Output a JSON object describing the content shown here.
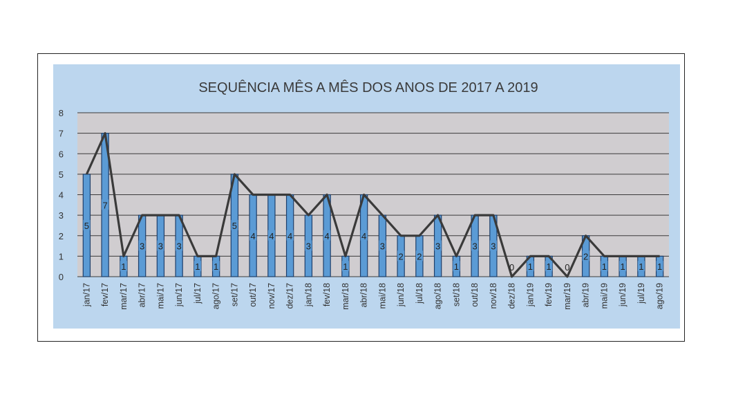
{
  "chart_data": {
    "type": "bar",
    "title": "SEQUÊNCIA MÊS A MÊS DOS ANOS DE 2017 A 2019",
    "categories": [
      "jan/17",
      "fev/17",
      "mar/17",
      "abr/17",
      "mai/17",
      "jun/17",
      "jul/17",
      "ago/17",
      "set/17",
      "out/17",
      "nov/17",
      "dez/17",
      "jan/18",
      "fev/18",
      "mar/18",
      "abr/18",
      "mai/18",
      "jun/18",
      "jul/18",
      "ago/18",
      "set/18",
      "out/18",
      "nov/18",
      "dez/18",
      "jan/19",
      "fev/19",
      "mar/19",
      "abr/19",
      "mai/19",
      "jun/19",
      "jul/19",
      "ago/19"
    ],
    "values": [
      5,
      7,
      1,
      3,
      3,
      3,
      1,
      1,
      5,
      4,
      4,
      4,
      3,
      4,
      1,
      4,
      3,
      2,
      2,
      3,
      1,
      3,
      3,
      0,
      1,
      1,
      0,
      2,
      1,
      1,
      1,
      1
    ],
    "overlay": "line",
    "ylim": [
      0,
      8
    ],
    "yticks": [
      0,
      1,
      2,
      3,
      4,
      5,
      6,
      7,
      8
    ],
    "grid": true,
    "colors": {
      "bar": "#5b9bd5",
      "bar_edge": "#1f3f6a",
      "line": "#3a3a3a",
      "plot_bg": "#d0cdd0",
      "chart_bg": "#bcd6ee"
    }
  }
}
